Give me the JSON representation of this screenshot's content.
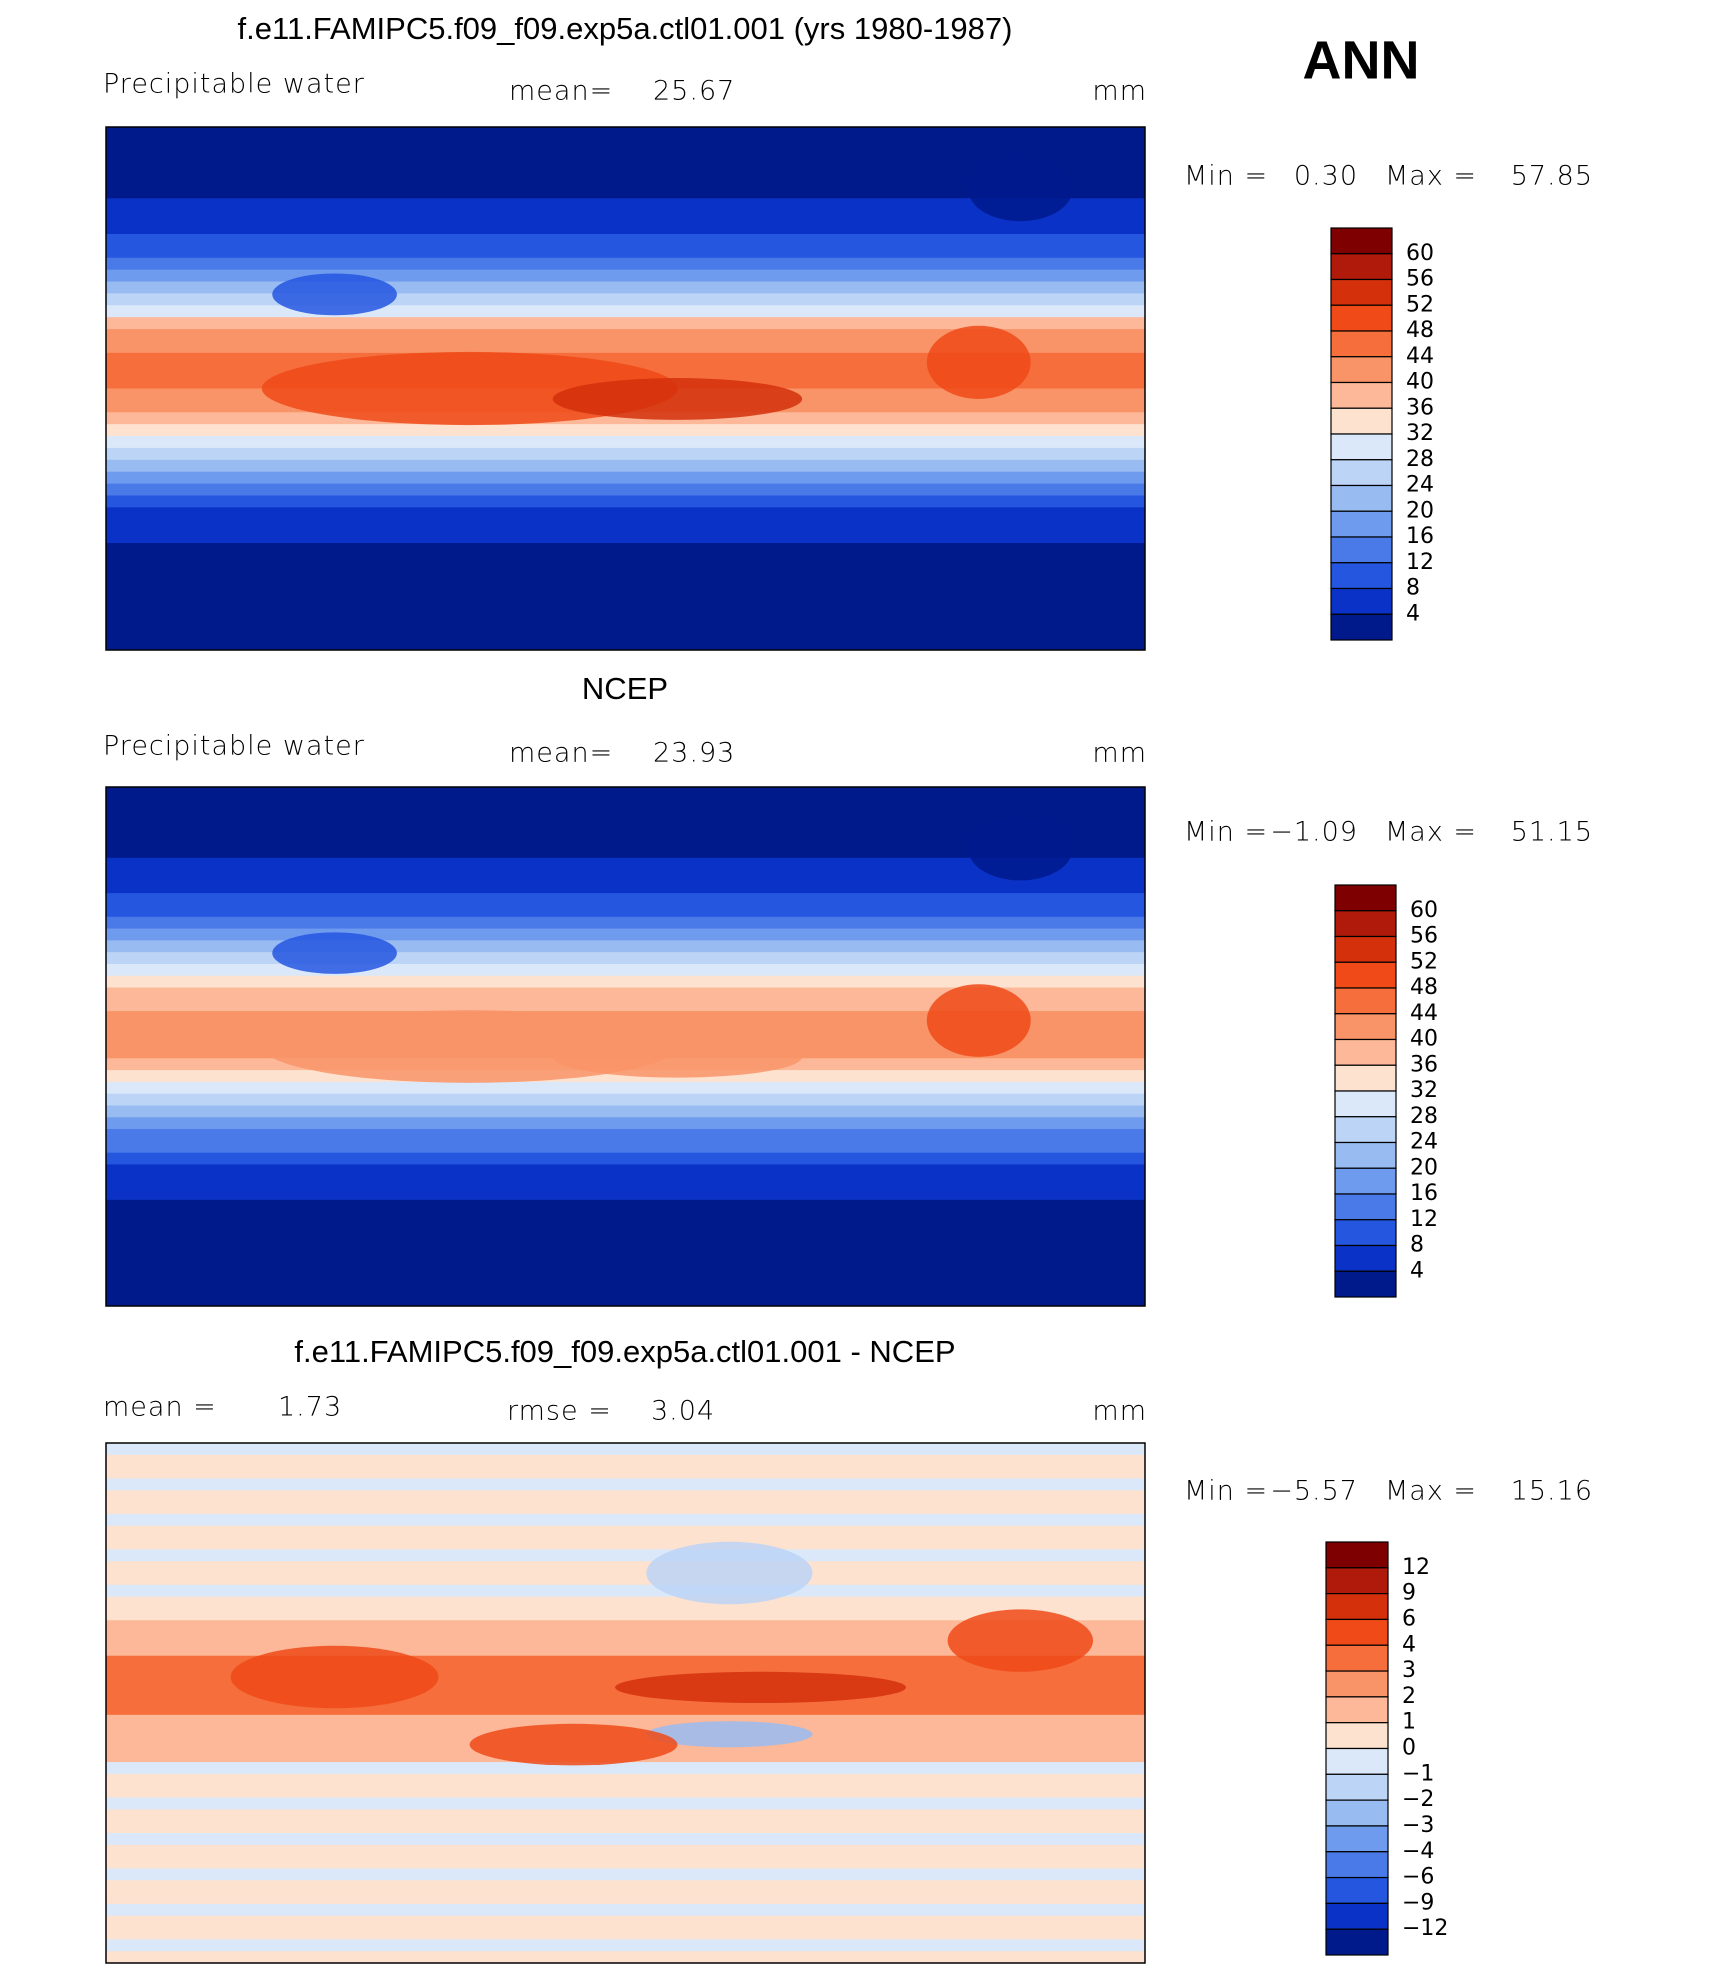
{
  "header": {
    "season": "ANN"
  },
  "panels": [
    {
      "title": "f.e11.FAMIPC5.f09_f09.exp5a.ctl01.001 (yrs 1980-1987)",
      "left_text": "Precipitable water",
      "center_label": "mean=",
      "center_value": "25.67",
      "units": "mm",
      "min_label": "Min =",
      "min": "0.30",
      "max_label": "Max =",
      "max": "57.85",
      "levels": [
        "60",
        "56",
        "52",
        "48",
        "44",
        "40",
        "36",
        "32",
        "28",
        "24",
        "20",
        "16",
        "12",
        "8",
        "4"
      ],
      "colors": [
        "#7f0000",
        "#b01a0a",
        "#d4300c",
        "#ef4a18",
        "#f56e3c",
        "#f99468",
        "#fcb898",
        "#fde2cf",
        "#dbe8fa",
        "#bcd4f6",
        "#98bbf2",
        "#6e9bee",
        "#4a7ae8",
        "#2456e0",
        "#0b32c6",
        "#001a8c"
      ]
    },
    {
      "title": "NCEP",
      "left_text": "Precipitable water",
      "center_label": "mean=",
      "center_value": "23.93",
      "units": "mm",
      "min_label": "Min =",
      "min": "−1.09",
      "max_label": "Max =",
      "max": "51.15",
      "levels": [
        "60",
        "56",
        "52",
        "48",
        "44",
        "40",
        "36",
        "32",
        "28",
        "24",
        "20",
        "16",
        "12",
        "8",
        "4"
      ],
      "colors": [
        "#7f0000",
        "#b01a0a",
        "#d4300c",
        "#ef4a18",
        "#f56e3c",
        "#f99468",
        "#fcb898",
        "#fde2cf",
        "#dbe8fa",
        "#bcd4f6",
        "#98bbf2",
        "#6e9bee",
        "#4a7ae8",
        "#2456e0",
        "#0b32c6",
        "#001a8c"
      ]
    },
    {
      "title": "f.e11.FAMIPC5.f09_f09.exp5a.ctl01.001 - NCEP",
      "left_label": "mean =",
      "left_value": "1.73",
      "center_label": "rmse =",
      "center_value": "3.04",
      "units": "mm",
      "min_label": "Min =",
      "min": "−5.57",
      "max_label": "Max =",
      "max": "15.16",
      "levels": [
        "12",
        "9",
        "6",
        "4",
        "3",
        "2",
        "1",
        "0",
        "−1",
        "−2",
        "−3",
        "−4",
        "−6",
        "−9",
        "−12"
      ],
      "colors": [
        "#7f0000",
        "#b01a0a",
        "#d4300c",
        "#ef4a18",
        "#f56e3c",
        "#f99468",
        "#fcb898",
        "#fde2cf",
        "#dbe8fa",
        "#bcd4f6",
        "#98bbf2",
        "#6e9bee",
        "#4a7ae8",
        "#2456e0",
        "#0b32c6",
        "#001a8c"
      ]
    }
  ]
}
